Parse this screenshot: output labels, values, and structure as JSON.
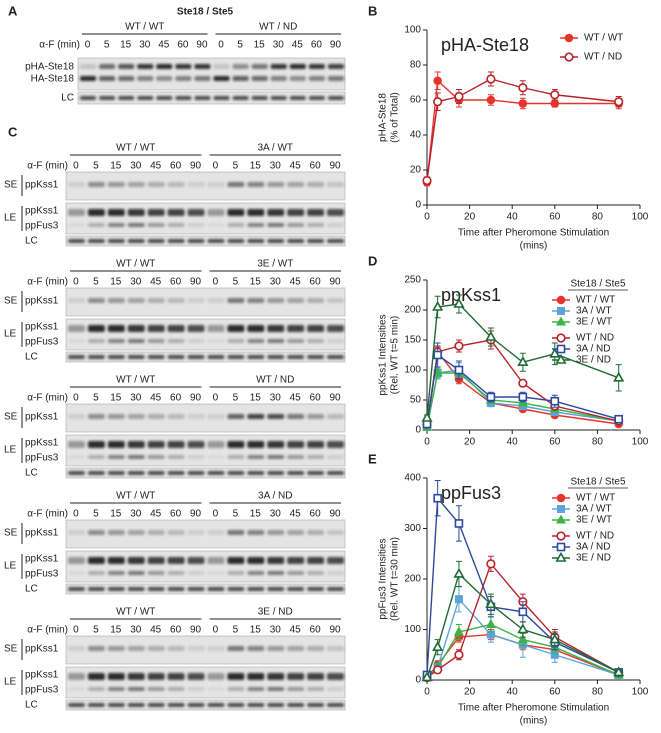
{
  "blots": {
    "time_label": "α-F (min)",
    "times": [
      0,
      5,
      15,
      30,
      45,
      60,
      90
    ],
    "panel_a": {
      "panel": "A",
      "title": "Ste18 / Ste5",
      "groups": [
        "WT / WT",
        "WT / ND"
      ],
      "rows": [
        "pHA-Ste18",
        "HA-Ste18"
      ],
      "loading": "LC"
    },
    "panel_c": {
      "panel": "C",
      "exposures": [
        "SE",
        "LE"
      ],
      "bands": [
        "ppKss1",
        "ppFus3"
      ],
      "loading": "LC",
      "blocks": [
        {
          "groups": [
            "WT / WT",
            "3A / WT"
          ]
        },
        {
          "groups": [
            "WT / WT",
            "3E / WT"
          ]
        },
        {
          "groups": [
            "WT / WT",
            "WT / ND"
          ]
        },
        {
          "groups": [
            "WT / WT",
            "3A / ND"
          ]
        },
        {
          "groups": [
            "WT / WT",
            "3E / ND"
          ]
        }
      ]
    }
  },
  "chart_data": [
    {
      "type": "line",
      "panel": "B",
      "title": "pHA-Ste18",
      "ylabel": [
        "pHA-Ste18",
        "(% of Total)"
      ],
      "xlabel": [
        "Time after Pheromone Stimulation",
        "(mins)"
      ],
      "x": [
        0,
        5,
        15,
        30,
        45,
        60,
        90
      ],
      "xlim": [
        0,
        100
      ],
      "xticks": [
        0,
        20,
        40,
        60,
        80,
        100
      ],
      "ylim": [
        0,
        100
      ],
      "yticks": [
        0,
        20,
        40,
        60,
        80,
        100
      ],
      "legend": "top-right",
      "series": [
        {
          "name": "WT / WT",
          "color": "#e8352c",
          "marker": "circle",
          "filled": true,
          "values": [
            13,
            71,
            60,
            60,
            58,
            58,
            58
          ],
          "errors": [
            2,
            5,
            4,
            3,
            3,
            2,
            3
          ]
        },
        {
          "name": "WT / ND",
          "color": "#b8232a",
          "marker": "circle",
          "filled": false,
          "values": [
            14,
            59,
            62,
            72,
            67,
            63,
            59
          ],
          "errors": [
            2,
            5,
            4,
            4,
            4,
            3,
            3
          ]
        }
      ]
    },
    {
      "type": "line",
      "panel": "D",
      "title": "ppKss1",
      "ylabel": [
        "ppKss1 Intensities",
        "(Rel. WT t=5 min)"
      ],
      "x": [
        0,
        5,
        15,
        30,
        45,
        60,
        90
      ],
      "xlim": [
        0,
        100
      ],
      "xticks": [
        0,
        20,
        40,
        60,
        80,
        100
      ],
      "ylim": [
        0,
        250
      ],
      "yticks": [
        0,
        50,
        100,
        150,
        200,
        250
      ],
      "legend": "right",
      "legend_title": "Ste18 / Ste5",
      "series": [
        {
          "name": "WT / WT",
          "color": "#e8352c",
          "marker": "circle",
          "filled": true,
          "values": [
            5,
            130,
            85,
            45,
            35,
            25,
            10
          ],
          "errors": [
            2,
            8,
            8,
            5,
            4,
            4,
            3
          ]
        },
        {
          "name": "3A / WT",
          "color": "#5ba3d9",
          "marker": "square",
          "filled": true,
          "values": [
            5,
            95,
            100,
            45,
            40,
            30,
            15
          ],
          "errors": [
            2,
            10,
            12,
            6,
            5,
            5,
            3
          ]
        },
        {
          "name": "3E / WT",
          "color": "#3db34a",
          "marker": "triangle",
          "filled": true,
          "values": [
            5,
            95,
            95,
            50,
            45,
            35,
            15
          ],
          "errors": [
            2,
            8,
            10,
            6,
            5,
            5,
            3
          ]
        },
        {
          "name": "WT / ND",
          "color": "#b8232a",
          "marker": "circle",
          "filled": false,
          "values": [
            10,
            130,
            140,
            150,
            78,
            40,
            15
          ],
          "errors": [
            3,
            10,
            10,
            15,
            5,
            6,
            4
          ]
        },
        {
          "name": "3A / ND",
          "color": "#2b4aa0",
          "marker": "square",
          "filled": false,
          "values": [
            10,
            125,
            100,
            55,
            55,
            48,
            18
          ],
          "errors": [
            3,
            20,
            15,
            8,
            8,
            10,
            5
          ]
        },
        {
          "name": "3E / ND",
          "color": "#1e6b35",
          "marker": "triangle",
          "filled": false,
          "values": [
            20,
            205,
            210,
            155,
            113,
            127,
            87
          ],
          "errors": [
            5,
            18,
            15,
            15,
            15,
            18,
            22
          ]
        }
      ]
    },
    {
      "type": "line",
      "panel": "E",
      "title": "ppFus3",
      "ylabel": [
        "ppFus3 Intensities",
        "(Rel. WT t=30 min)"
      ],
      "xlabel": [
        "Time after Pheromone Stimulation",
        "(mins)"
      ],
      "x": [
        0,
        5,
        15,
        30,
        45,
        60,
        90
      ],
      "xlim": [
        0,
        100
      ],
      "xticks": [
        0,
        20,
        40,
        60,
        80,
        100
      ],
      "ylim": [
        0,
        400
      ],
      "yticks": [
        0,
        100,
        200,
        300,
        400
      ],
      "legend": "right",
      "legend_title": "Ste18 / Ste5",
      "series": [
        {
          "name": "WT / WT",
          "color": "#e8352c",
          "marker": "circle",
          "filled": true,
          "values": [
            5,
            30,
            85,
            90,
            70,
            60,
            10
          ],
          "errors": [
            2,
            8,
            10,
            10,
            10,
            10,
            4
          ]
        },
        {
          "name": "3A / WT",
          "color": "#5ba3d9",
          "marker": "square",
          "filled": true,
          "values": [
            5,
            25,
            160,
            90,
            70,
            50,
            10
          ],
          "errors": [
            2,
            8,
            25,
            15,
            25,
            15,
            4
          ]
        },
        {
          "name": "3E / WT",
          "color": "#3db34a",
          "marker": "triangle",
          "filled": true,
          "values": [
            5,
            25,
            95,
            110,
            80,
            65,
            10
          ],
          "errors": [
            2,
            8,
            15,
            15,
            12,
            12,
            4
          ]
        },
        {
          "name": "WT / ND",
          "color": "#b8232a",
          "marker": "circle",
          "filled": false,
          "values": [
            5,
            20,
            50,
            230,
            155,
            85,
            15
          ],
          "errors": [
            2,
            6,
            10,
            15,
            15,
            15,
            5
          ]
        },
        {
          "name": "3A / ND",
          "color": "#2b4aa0",
          "marker": "square",
          "filled": false,
          "values": [
            10,
            360,
            310,
            145,
            135,
            75,
            15
          ],
          "errors": [
            3,
            35,
            35,
            20,
            20,
            15,
            5
          ]
        },
        {
          "name": "3E / ND",
          "color": "#1e6b35",
          "marker": "triangle",
          "filled": false,
          "values": [
            5,
            65,
            210,
            150,
            100,
            80,
            15
          ],
          "errors": [
            2,
            15,
            25,
            20,
            15,
            15,
            5
          ]
        }
      ]
    }
  ]
}
